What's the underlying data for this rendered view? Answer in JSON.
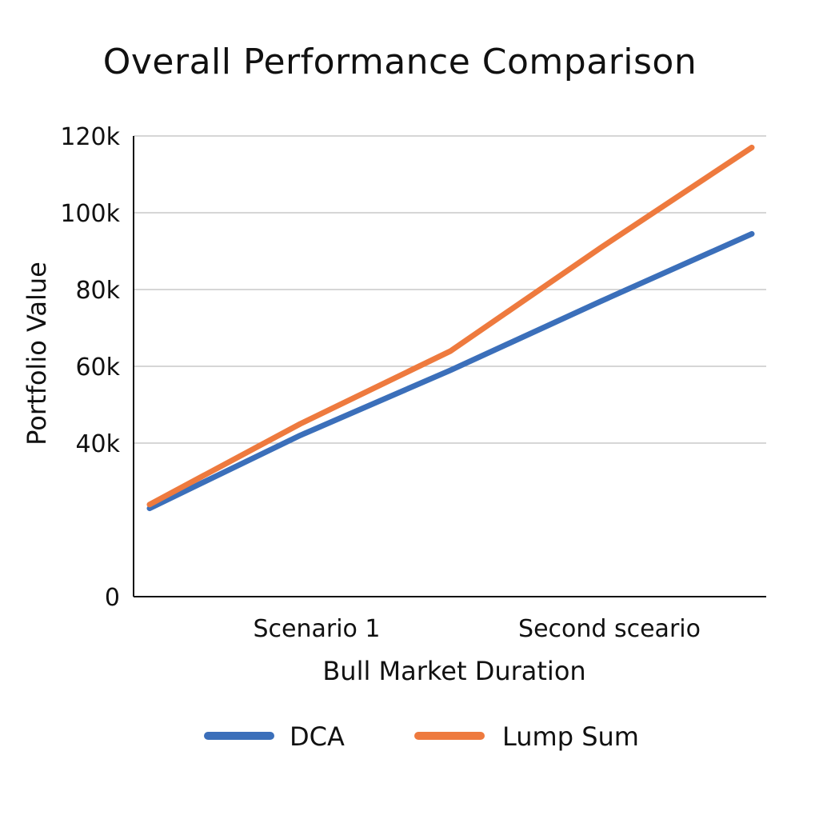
{
  "chart_data": {
    "type": "line",
    "title": "Overall Performance Comparison",
    "xlabel": "Bull Market Duration",
    "ylabel": "Portfolio Value",
    "categories": [
      "Scenario 1",
      "Second sceario"
    ],
    "x": [
      0,
      0.25,
      0.5,
      0.75,
      1.0
    ],
    "xlim": [
      0,
      1
    ],
    "ylim": [
      0,
      120000
    ],
    "yticks": [
      0,
      40000,
      60000,
      80000,
      100000,
      120000
    ],
    "ytick_labels": [
      "0",
      "40k",
      "60k",
      "80k",
      "100k",
      "120k"
    ],
    "grid": true,
    "legend_position": "bottom",
    "series": [
      {
        "name": "DCA",
        "color": "#3b6fba",
        "values": [
          23000,
          42000,
          59000,
          77000,
          94500
        ]
      },
      {
        "name": "Lump Sum",
        "color": "#ee7a3e",
        "values": [
          24000,
          45000,
          64000,
          91000,
          117000
        ]
      }
    ]
  }
}
